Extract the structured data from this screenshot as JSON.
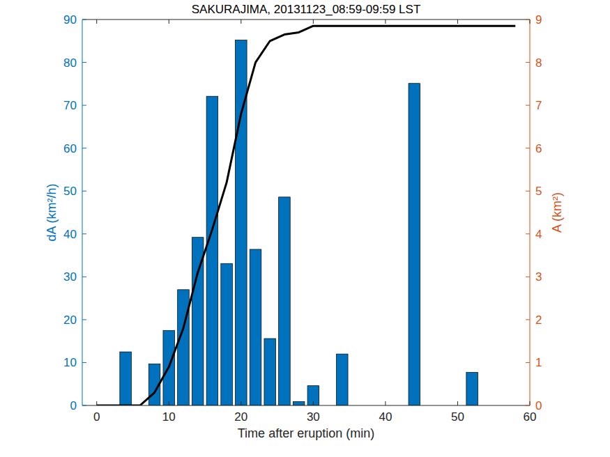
{
  "chart_data": {
    "type": "bar",
    "title": "SAKURAJIMA, 20131123_08:59-09:59 LST",
    "x_label": "Time after eruption (min)",
    "y_label": "dA (km²/h)",
    "y2_label": "A (km²)",
    "x": [
      0,
      2,
      4,
      6,
      8,
      10,
      12,
      14,
      16,
      18,
      20,
      22,
      24,
      26,
      28,
      30,
      32,
      34,
      36,
      38,
      40,
      42,
      44,
      46,
      48,
      50,
      52,
      54,
      56,
      58
    ],
    "series": [
      {
        "type": "bar",
        "color": "#0072bd",
        "values": [
          0,
          0,
          12.5,
          0,
          9.7,
          17.5,
          27,
          39.2,
          72.1,
          33.1,
          85.2,
          36.4,
          15.6,
          48.6,
          0.9,
          4.6,
          0,
          12,
          0,
          0,
          0,
          0,
          75.1,
          0,
          0,
          0,
          7.7,
          0,
          0,
          0
        ]
      },
      {
        "type": "line",
        "color": "#000000",
        "axis": "y2",
        "values": [
          0,
          0,
          0,
          0,
          0.3,
          0.9,
          1.8,
          3.1,
          4.1,
          5.2,
          6.8,
          8.0,
          8.5,
          8.65,
          8.7,
          8.85,
          8.85,
          8.85,
          8.85,
          8.85,
          8.85,
          8.85,
          8.85,
          8.85,
          8.85,
          8.85,
          8.85,
          8.85,
          8.85,
          8.85
        ]
      }
    ],
    "xlim": [
      -2,
      60
    ],
    "xticks": [
      0,
      10,
      20,
      30,
      40,
      50,
      60
    ],
    "ylim": [
      0,
      90
    ],
    "yticks": [
      0,
      10,
      20,
      30,
      40,
      50,
      60,
      70,
      80,
      90
    ],
    "y2lim": [
      0,
      9
    ],
    "y2ticks": [
      0,
      1,
      2,
      3,
      4,
      5,
      6,
      7,
      8,
      9
    ],
    "grid": false
  }
}
